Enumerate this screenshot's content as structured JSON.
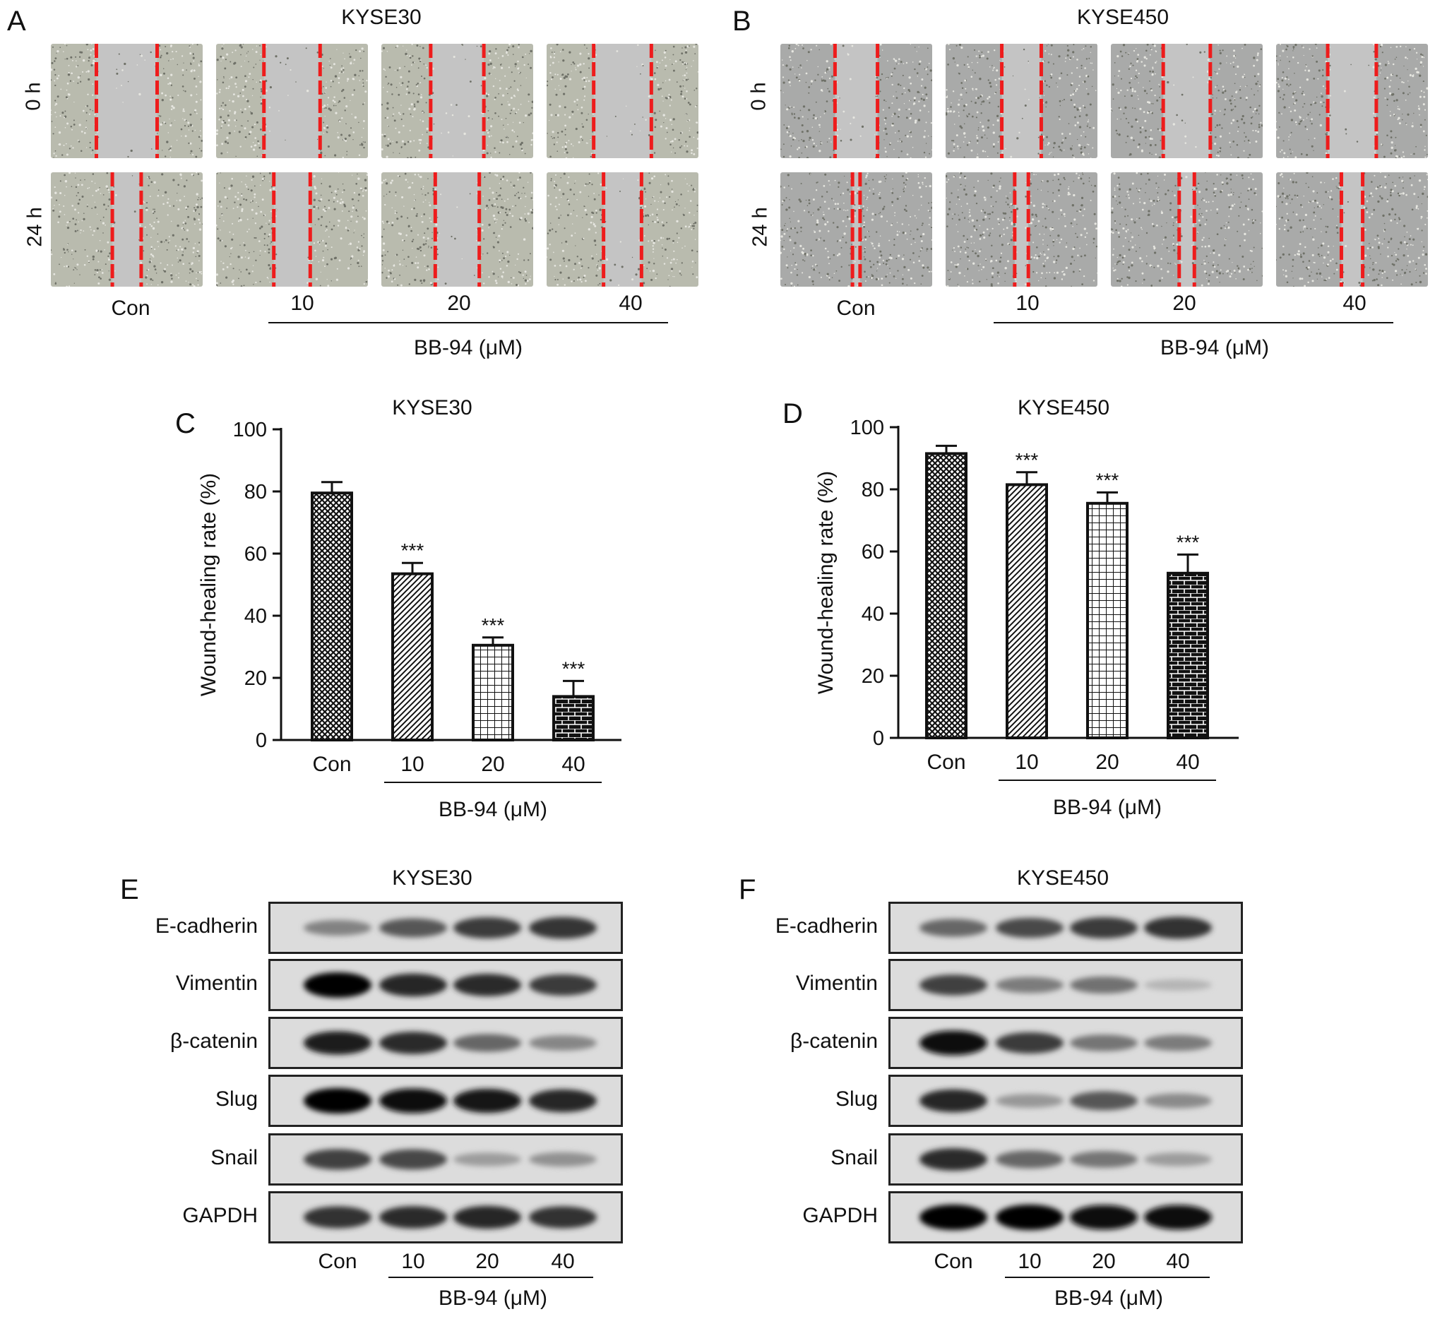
{
  "panels": {
    "a": {
      "letter": "A",
      "title": "KYSE30"
    },
    "b": {
      "letter": "B",
      "title": "KYSE450"
    },
    "c": {
      "letter": "C"
    },
    "d": {
      "letter": "D"
    },
    "e": {
      "letter": "E",
      "title": "KYSE30"
    },
    "f": {
      "letter": "F",
      "title": "KYSE450"
    }
  },
  "timepoints": [
    "0 h",
    "24 h"
  ],
  "conditions": [
    "Con",
    "10",
    "20",
    "40"
  ],
  "treatment_label": "BB-94 (μM)",
  "proteins": [
    "E-cadherin",
    "Vimentin",
    "β-catenin",
    "Slug",
    "Snail",
    "GAPDH"
  ],
  "colors": {
    "wound_line": "#ee1c1c",
    "tissue_a": "#b9bbae",
    "tissue_b": "#a9aaa9",
    "gap": "#c4c4c4"
  },
  "wound_lines": {
    "kyse30": [
      [
        [
          0.27,
          0.67
        ],
        [
          0.28,
          0.65
        ],
        [
          0.32,
          0.67
        ],
        [
          0.33,
          0.71
        ]
      ],
      [
        [
          0.48,
          0.67
        ],
        [
          0.33,
          0.57
        ],
        [
          0.31,
          0.6
        ],
        [
          0.38,
          0.63
        ]
      ]
    ],
    "kyse450": [
      [
        [
          0.35,
          0.63
        ],
        [
          0.36,
          0.62
        ],
        [
          0.35,
          0.66
        ],
        [
          0.34,
          0.66
        ]
      ],
      [
        [
          0.43,
          0.48
        ],
        [
          0.44,
          0.53
        ],
        [
          0.43,
          0.53
        ],
        [
          0.4,
          0.54
        ]
      ]
    ]
  },
  "blot_bands": {
    "kyse30": [
      [
        0.42,
        0.62,
        0.75,
        0.78
      ],
      [
        1.0,
        0.85,
        0.82,
        0.75
      ],
      [
        0.88,
        0.82,
        0.55,
        0.4
      ],
      [
        1.0,
        0.95,
        0.92,
        0.85
      ],
      [
        0.72,
        0.7,
        0.3,
        0.35
      ],
      [
        0.8,
        0.82,
        0.85,
        0.8
      ]
    ],
    "kyse450": [
      [
        0.55,
        0.68,
        0.75,
        0.8
      ],
      [
        0.72,
        0.45,
        0.5,
        0.18
      ],
      [
        0.95,
        0.75,
        0.48,
        0.45
      ],
      [
        0.85,
        0.32,
        0.62,
        0.38
      ],
      [
        0.82,
        0.55,
        0.48,
        0.3
      ],
      [
        1.0,
        1.0,
        0.95,
        0.95
      ]
    ]
  },
  "chart_data": [
    {
      "type": "bar",
      "title": "KYSE30",
      "ylabel": "Wound-healing rate (%)",
      "xlabel": "BB-94 (μM)",
      "categories": [
        "Con",
        "10",
        "20",
        "40"
      ],
      "values": [
        79.5,
        53.5,
        30.5,
        14.0
      ],
      "errors": [
        3.5,
        3.5,
        2.5,
        5.0
      ],
      "significance": [
        "",
        "***",
        "***",
        "***"
      ],
      "patterns": [
        "crosshatch",
        "diagonal",
        "grid",
        "brick"
      ],
      "ylim": [
        0,
        100
      ],
      "yticks": [
        0,
        20,
        40,
        60,
        80,
        100
      ]
    },
    {
      "type": "bar",
      "title": "KYSE450",
      "ylabel": "Wound-healing rate (%)",
      "xlabel": "BB-94 (μM)",
      "categories": [
        "Con",
        "10",
        "20",
        "40"
      ],
      "values": [
        91.5,
        81.5,
        75.5,
        53.0
      ],
      "errors": [
        2.5,
        4.0,
        3.5,
        6.0
      ],
      "significance": [
        "",
        "***",
        "***",
        "***"
      ],
      "patterns": [
        "crosshatch",
        "diagonal",
        "grid",
        "brick"
      ],
      "ylim": [
        0,
        100
      ],
      "yticks": [
        0,
        20,
        40,
        60,
        80,
        100
      ]
    }
  ]
}
